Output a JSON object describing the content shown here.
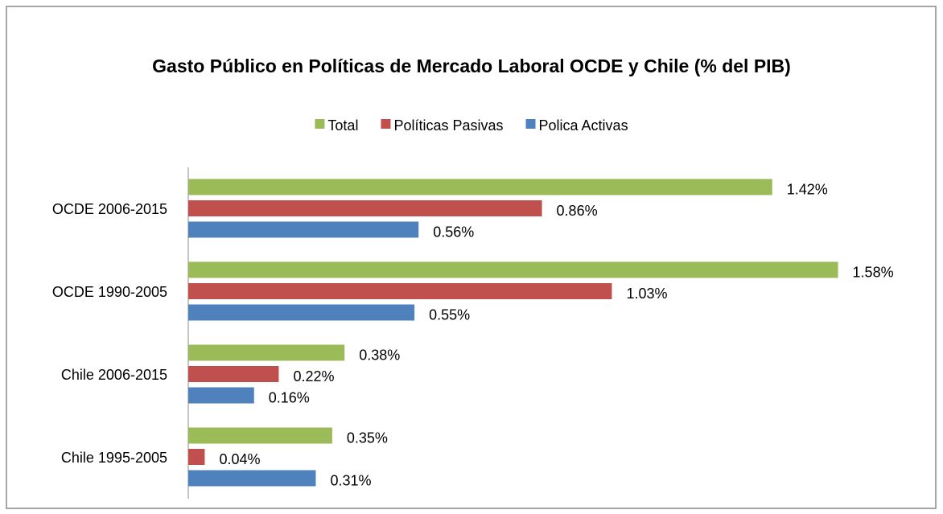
{
  "chart_data": {
    "type": "barh",
    "title": "Gasto Público en Políticas de Mercado Laboral OCDE y Chile (% del PIB)",
    "categories": [
      "OCDE 2006-2015",
      "OCDE 1990-2005",
      "Chile 2006-2015",
      "Chile 1995-2005"
    ],
    "series": [
      {
        "name": "Total",
        "color": "#9bbb59",
        "values": [
          1.42,
          1.58,
          0.38,
          0.35
        ],
        "value_labels": [
          "1.42%",
          "1.58%",
          "0.38%",
          "0.35%"
        ]
      },
      {
        "name": "Políticas Pasivas",
        "color": "#c0504d",
        "values": [
          0.86,
          1.03,
          0.22,
          0.04
        ],
        "value_labels": [
          "0.86%",
          "1.03%",
          "0.22%",
          "0.04%"
        ]
      },
      {
        "name": "Polica Activas",
        "color": "#4f81bd",
        "values": [
          0.56,
          0.55,
          0.16,
          0.31
        ],
        "value_labels": [
          "0.56%",
          "0.55%",
          "0.16%",
          "0.31%"
        ]
      }
    ],
    "xlim": [
      0,
      1.8
    ],
    "legend": "top"
  }
}
